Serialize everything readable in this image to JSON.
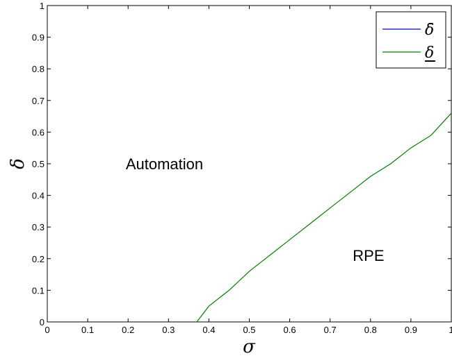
{
  "chart_data": {
    "type": "line",
    "xlabel": "σ",
    "ylabel": "δ",
    "xlim": [
      0,
      1
    ],
    "ylim": [
      0,
      1
    ],
    "x_ticks": [
      "0",
      "0.1",
      "0.2",
      "0.3",
      "0.4",
      "0.5",
      "0.6",
      "0.7",
      "0.8",
      "0.9",
      "1"
    ],
    "y_ticks": [
      "0",
      "0.1",
      "0.2",
      "0.3",
      "0.4",
      "0.5",
      "0.6",
      "0.7",
      "0.8",
      "0.9",
      "1"
    ],
    "grid": false,
    "legend_position": "top-right",
    "series": [
      {
        "name": "δ̄",
        "color": "#0000ff",
        "x": [],
        "y": []
      },
      {
        "name": "δ",
        "color": "#008000",
        "x": [
          0.37,
          0.4,
          0.45,
          0.5,
          0.55,
          0.6,
          0.65,
          0.7,
          0.75,
          0.8,
          0.85,
          0.9,
          0.95,
          1.0
        ],
        "y": [
          0.0,
          0.05,
          0.1,
          0.16,
          0.21,
          0.26,
          0.31,
          0.36,
          0.41,
          0.46,
          0.5,
          0.55,
          0.59,
          0.66
        ]
      }
    ],
    "annotations": [
      {
        "text": "Automation",
        "x": 0.29,
        "y": 0.5
      },
      {
        "text": "RPE",
        "x": 0.795,
        "y": 0.21
      }
    ]
  }
}
